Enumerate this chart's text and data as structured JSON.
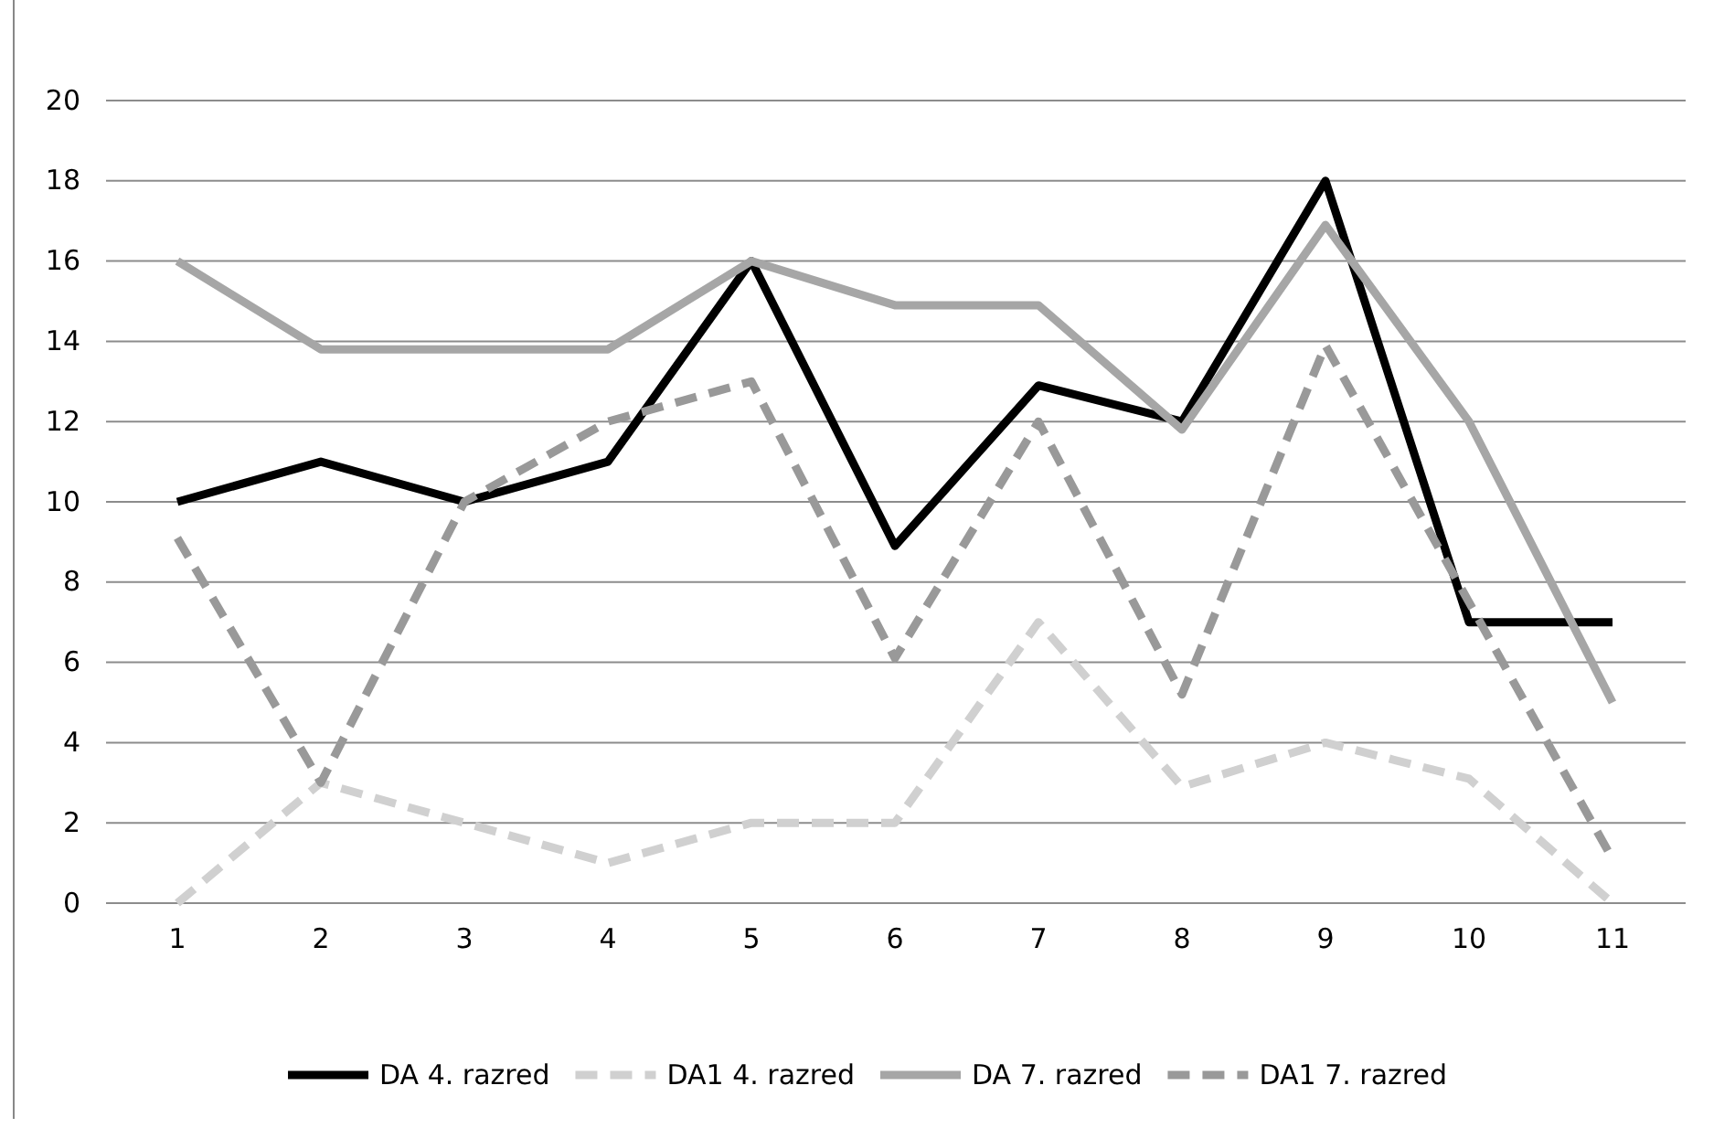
{
  "chart_data": {
    "type": "line",
    "categories": [
      "1",
      "2",
      "3",
      "4",
      "5",
      "6",
      "7",
      "8",
      "9",
      "10",
      "11"
    ],
    "series": [
      {
        "name": "DA 4. razred",
        "color": "#000000",
        "line_style": "solid",
        "values": [
          10,
          11,
          10,
          11,
          16,
          8.9,
          12.9,
          12,
          18,
          7,
          7
        ]
      },
      {
        "name": "DA1 4. razred",
        "color": "#d0d0d0",
        "line_style": "dashed",
        "values": [
          0,
          3,
          2,
          1,
          2,
          2,
          7,
          2.9,
          4,
          3.1,
          0
        ]
      },
      {
        "name": "DA 7. razred",
        "color": "#a6a6a6",
        "line_style": "solid",
        "values": [
          16,
          13.8,
          13.8,
          13.8,
          16,
          14.9,
          14.9,
          11.8,
          16.9,
          12,
          5
        ]
      },
      {
        "name": "DA1 7. razred",
        "color": "#999999",
        "line_style": "dashed",
        "values": [
          9.1,
          3,
          10,
          12,
          13,
          6.1,
          12,
          5.2,
          13.9,
          7.5,
          1.1
        ]
      }
    ],
    "ylim": [
      0,
      20
    ],
    "yticks": [
      0,
      2,
      4,
      6,
      8,
      10,
      12,
      14,
      16,
      18,
      20
    ],
    "grid": "y",
    "legend": "bottom",
    "marker": "none"
  }
}
